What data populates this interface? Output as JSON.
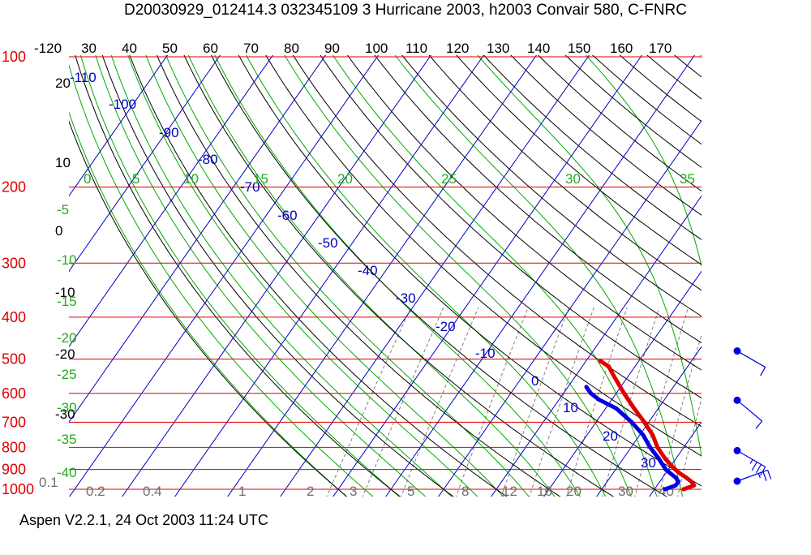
{
  "title": "D20030929_012414.3 032345109 3 Hurricane 2003, h2003 Convair 580, C-FNRC",
  "footer": "Aspen V2.2.1, 24 Oct 2003  11:24 UTC",
  "colors": {
    "pressure": "#e00000",
    "temperature": "#000000",
    "theta": "#000000",
    "theta_e_label": "#0000c0",
    "isotherm_label": "#0000c0",
    "moist_adiabat": "#00aa00",
    "mixing_ratio": "#808080",
    "temp_profile": "#e00000",
    "dewpoint_profile": "#0000e0",
    "wind_barb": "#0000e0"
  },
  "chart_data": {
    "type": "skew-t",
    "pressure_levels": [
      100,
      200,
      300,
      400,
      500,
      600,
      700,
      800,
      900,
      1000
    ],
    "left_temp_labels": [
      "20",
      "10",
      "0",
      "-10",
      "-20",
      "-30"
    ],
    "theta_labels": [
      "-120",
      "30",
      "40",
      "50",
      "60",
      "70",
      "80",
      "90",
      "100",
      "110",
      "120",
      "130",
      "140",
      "150",
      "160",
      "170"
    ],
    "isotherm_labels": [
      "-110",
      "-100",
      "-90",
      "-80",
      "-70",
      "-60",
      "-50",
      "-40",
      "-30",
      "-20",
      "-10",
      "0",
      "10",
      "20",
      "30"
    ],
    "moist_top_labels": [
      "0",
      "5",
      "10",
      "15",
      "20",
      "25",
      "30",
      "35"
    ],
    "moist_left_labels": [
      "-5",
      "-10",
      "-15",
      "-20",
      "-25",
      "-30",
      "-35",
      "-40"
    ],
    "mixing_ratio_labels": [
      "0.1",
      "0.2",
      "0.4",
      "1",
      "2",
      "3",
      "5",
      "8",
      "12",
      "16",
      "20",
      "30",
      "40"
    ],
    "temperature_profile": [
      {
        "p": 1000,
        "t": 25.5
      },
      {
        "p": 980,
        "t": 27.0
      },
      {
        "p": 960,
        "t": 26.0
      },
      {
        "p": 940,
        "t": 24.5
      },
      {
        "p": 920,
        "t": 22.8
      },
      {
        "p": 900,
        "t": 21.3
      },
      {
        "p": 850,
        "t": 18.0
      },
      {
        "p": 800,
        "t": 15.0
      },
      {
        "p": 750,
        "t": 12.5
      },
      {
        "p": 700,
        "t": 9.2
      },
      {
        "p": 650,
        "t": 5.4
      },
      {
        "p": 600,
        "t": 1.5
      },
      {
        "p": 550,
        "t": -2.5
      },
      {
        "p": 520,
        "t": -5.0
      },
      {
        "p": 505,
        "t": -7.3
      }
    ],
    "dewpoint_profile": [
      {
        "p": 1000,
        "t": 22.0
      },
      {
        "p": 980,
        "t": 23.5
      },
      {
        "p": 960,
        "t": 23.5
      },
      {
        "p": 940,
        "t": 22.5
      },
      {
        "p": 920,
        "t": 21.0
      },
      {
        "p": 900,
        "t": 19.5
      },
      {
        "p": 850,
        "t": 16.8
      },
      {
        "p": 800,
        "t": 13.6
      },
      {
        "p": 750,
        "t": 10.7
      },
      {
        "p": 700,
        "t": 6.8
      },
      {
        "p": 650,
        "t": 2.0
      },
      {
        "p": 620,
        "t": -2.5
      },
      {
        "p": 600,
        "t": -4.8
      },
      {
        "p": 580,
        "t": -6.5
      }
    ],
    "wind_barbs": [
      {
        "p": 500,
        "speed_kt": 10,
        "dir_deg": 120
      },
      {
        "p": 650,
        "speed_kt": 10,
        "dir_deg": 130
      },
      {
        "p": 850,
        "speed_kt": 25,
        "dir_deg": 120
      },
      {
        "p": 1000,
        "speed_kt": 15,
        "dir_deg": 70
      }
    ],
    "grid": true
  }
}
